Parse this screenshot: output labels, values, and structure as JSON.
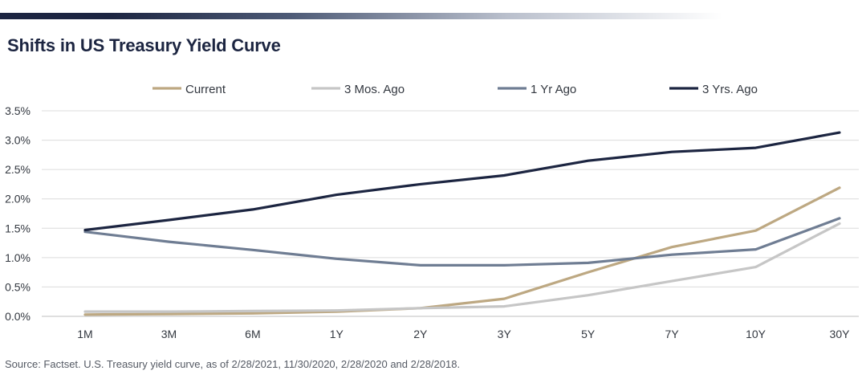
{
  "title": "Shifts in US Treasury Yield Curve",
  "source": "Source: Factset. U.S. Treasury yield curve, as of 2/28/2021, 11/30/2020, 2/28/2020 and 2/28/2018.",
  "chart_data": {
    "type": "line",
    "title": "Shifts in US Treasury Yield Curve",
    "xlabel": "",
    "ylabel": "",
    "categories": [
      "1M",
      "3M",
      "6M",
      "1Y",
      "2Y",
      "3Y",
      "5Y",
      "7Y",
      "10Y",
      "30Y"
    ],
    "ylim": [
      0,
      3.5
    ],
    "yticks": [
      "0.0%",
      "0.5%",
      "1.0%",
      "1.5%",
      "2.0%",
      "2.5%",
      "3.0%",
      "3.5%"
    ],
    "grid": true,
    "legend": "top",
    "series": [
      {
        "name": "Current",
        "color": "#bda882",
        "values": [
          0.03,
          0.04,
          0.05,
          0.08,
          0.14,
          0.3,
          0.75,
          1.18,
          1.46,
          2.19
        ]
      },
      {
        "name": "3 Mos. Ago",
        "color": "#c6c6c6",
        "values": [
          0.08,
          0.08,
          0.09,
          0.1,
          0.14,
          0.17,
          0.36,
          0.6,
          0.84,
          1.58
        ]
      },
      {
        "name": "1 Yr Ago",
        "color": "#6f7d93",
        "values": [
          1.44,
          1.27,
          1.13,
          0.98,
          0.87,
          0.87,
          0.91,
          1.05,
          1.14,
          1.67
        ]
      },
      {
        "name": "3 Yrs. Ago",
        "color": "#1c2541",
        "values": [
          1.47,
          1.64,
          1.82,
          2.07,
          2.25,
          2.4,
          2.65,
          2.8,
          2.87,
          3.13
        ]
      }
    ]
  }
}
